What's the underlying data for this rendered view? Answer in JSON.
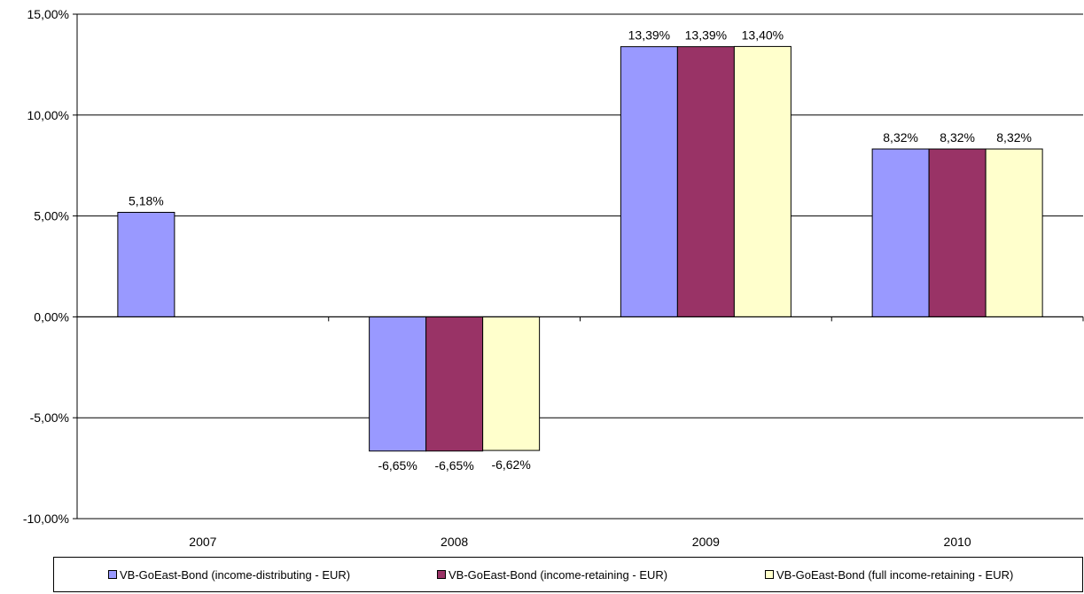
{
  "chart_data": {
    "type": "bar",
    "title": "",
    "xlabel": "",
    "ylabel": "",
    "categories": [
      "2007",
      "2008",
      "2009",
      "2010"
    ],
    "series": [
      {
        "name": "VB-GoEast-Bond (income-distributing - EUR)",
        "color": "#9999ff",
        "values": [
          5.18,
          -6.65,
          13.39,
          8.32
        ],
        "labels": [
          "5,18%",
          "-6,65%",
          "13,39%",
          "8,32%"
        ]
      },
      {
        "name": "VB-GoEast-Bond (income-retaining - EUR)",
        "color": "#993366",
        "values": [
          null,
          -6.65,
          13.39,
          8.32
        ],
        "labels": [
          "",
          "-6,65%",
          "13,39%",
          "8,32%"
        ]
      },
      {
        "name": "VB-GoEast-Bond (full income-retaining - EUR)",
        "color": "#ffffcc",
        "values": [
          null,
          -6.62,
          13.4,
          8.32
        ],
        "labels": [
          "",
          "-6,62%",
          "13,40%",
          "8,32%"
        ]
      }
    ],
    "ylim": [
      -10,
      15
    ],
    "yticks": [
      -10,
      -5,
      0,
      5,
      10,
      15
    ],
    "ytick_labels": [
      "-10,00%",
      "-5,00%",
      "0,00%",
      "5,00%",
      "10,00%",
      "15,00%"
    ],
    "grid": true,
    "legend_position": "bottom"
  }
}
